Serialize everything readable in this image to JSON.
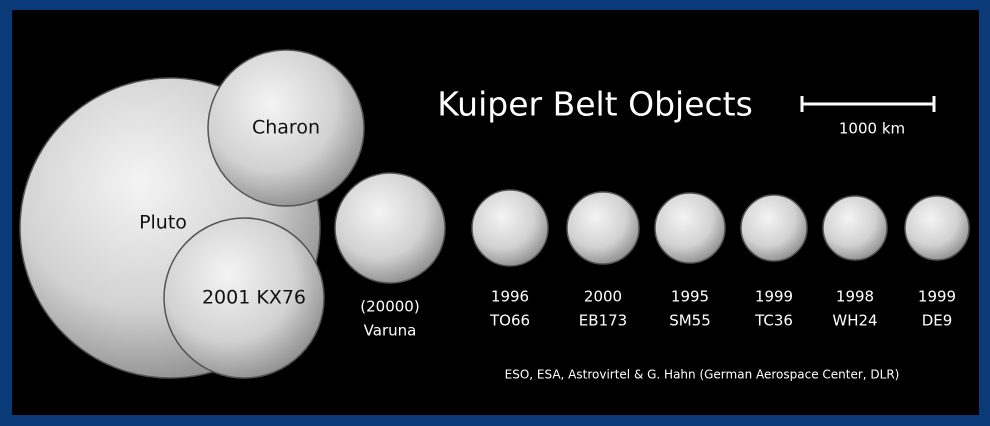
{
  "title": "Kuiper Belt Objects",
  "scale_label": "1000 km",
  "credit": "ESO, ESA, Astrovirtel & G. Hahn (German Aerospace Center, DLR)",
  "objects": [
    {
      "lines": [
        "Pluto"
      ]
    },
    {
      "lines": [
        "Charon"
      ]
    },
    {
      "lines": [
        "2001 KX76"
      ]
    },
    {
      "lines": [
        "(20000)",
        "Varuna"
      ]
    },
    {
      "lines": [
        "1996",
        "TO66"
      ]
    },
    {
      "lines": [
        "2000",
        "EB173"
      ]
    },
    {
      "lines": [
        "1995",
        "SM55"
      ]
    },
    {
      "lines": [
        "1999",
        "TC36"
      ]
    },
    {
      "lines": [
        "1998",
        "WH24"
      ]
    },
    {
      "lines": [
        "1999",
        "DE9"
      ]
    }
  ]
}
